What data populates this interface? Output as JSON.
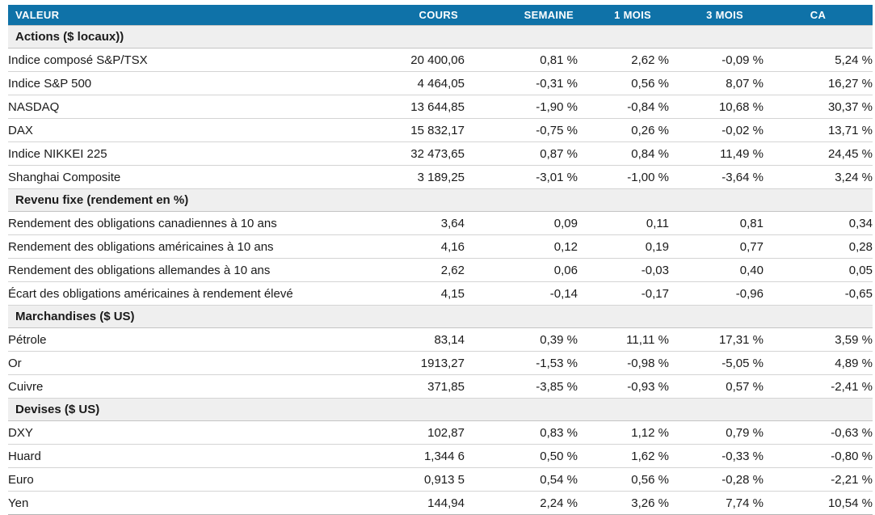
{
  "colors": {
    "header_bg": "#0F72A8",
    "positive": "#00A15D",
    "negative": "#E5150F",
    "section_bg": "#EFEFEF"
  },
  "table": {
    "columns": [
      "VALEUR",
      "COURS",
      "SEMAINE",
      "1 MOIS",
      "3 MOIS",
      "CA"
    ],
    "sections": [
      {
        "title": "Actions ($ locaux))",
        "rows": [
          {
            "label": "Indice composé S&P/TSX",
            "cours": "20 400,06",
            "changes": [
              {
                "text": "0,81 %",
                "tone": "green"
              },
              {
                "text": "2,62 %",
                "tone": "green"
              },
              {
                "text": "-0,09 %",
                "tone": "red"
              },
              {
                "text": "5,24 %",
                "tone": "green"
              }
            ]
          },
          {
            "label": "Indice S&P 500",
            "cours": "4 464,05",
            "changes": [
              {
                "text": "-0,31 %",
                "tone": "red"
              },
              {
                "text": "0,56 %",
                "tone": "green"
              },
              {
                "text": "8,07 %",
                "tone": "green"
              },
              {
                "text": "16,27 %",
                "tone": "green"
              }
            ]
          },
          {
            "label": "NASDAQ",
            "cours": "13 644,85",
            "changes": [
              {
                "text": "-1,90 %",
                "tone": "red"
              },
              {
                "text": "-0,84 %",
                "tone": "red"
              },
              {
                "text": "10,68 %",
                "tone": "green"
              },
              {
                "text": "30,37 %",
                "tone": "green"
              }
            ]
          },
          {
            "label": "DAX",
            "cours": "15 832,17",
            "changes": [
              {
                "text": "-0,75 %",
                "tone": "red"
              },
              {
                "text": "0,26 %",
                "tone": "green"
              },
              {
                "text": "-0,02 %",
                "tone": "red"
              },
              {
                "text": "13,71 %",
                "tone": "green"
              }
            ]
          },
          {
            "label": "Indice NIKKEI 225",
            "cours": "32 473,65",
            "changes": [
              {
                "text": "0,87 %",
                "tone": "green"
              },
              {
                "text": "0,84 %",
                "tone": "green"
              },
              {
                "text": "11,49 %",
                "tone": "green"
              },
              {
                "text": "24,45 %",
                "tone": "green"
              }
            ]
          },
          {
            "label": "Shanghai Composite",
            "cours": "3 189,25",
            "changes": [
              {
                "text": "-3,01 %",
                "tone": "red"
              },
              {
                "text": "-1,00 %",
                "tone": "red"
              },
              {
                "text": "-3,64 %",
                "tone": "red"
              },
              {
                "text": "3,24 %",
                "tone": "green"
              }
            ]
          }
        ]
      },
      {
        "title": "Revenu fixe (rendement en %)",
        "rows": [
          {
            "label": "Rendement des obligations canadiennes à 10 ans",
            "cours": "3,64",
            "changes": [
              {
                "text": "0,09",
                "tone": "red"
              },
              {
                "text": "0,11",
                "tone": "red"
              },
              {
                "text": "0,81",
                "tone": "red"
              },
              {
                "text": "0,34",
                "tone": "red"
              }
            ]
          },
          {
            "label": "Rendement des obligations américaines à 10 ans",
            "cours": "4,16",
            "changes": [
              {
                "text": "0,12",
                "tone": "red"
              },
              {
                "text": "0,19",
                "tone": "red"
              },
              {
                "text": "0,77",
                "tone": "red"
              },
              {
                "text": "0,28",
                "tone": "red"
              }
            ]
          },
          {
            "label": "Rendement des obligations allemandes à 10 ans",
            "cours": "2,62",
            "changes": [
              {
                "text": "0,06",
                "tone": "red"
              },
              {
                "text": "-0,03",
                "tone": "green"
              },
              {
                "text": "0,40",
                "tone": "red"
              },
              {
                "text": "0,05",
                "tone": "red"
              }
            ]
          },
          {
            "label": "Écart des obligations américaines à rendement élevé",
            "cours": "4,15",
            "changes": [
              {
                "text": "-0,14",
                "tone": "green"
              },
              {
                "text": "-0,17",
                "tone": "green"
              },
              {
                "text": "-0,96",
                "tone": "green"
              },
              {
                "text": "-0,65",
                "tone": "green"
              }
            ]
          }
        ]
      },
      {
        "title": "Marchandises ($ US)",
        "rows": [
          {
            "label": "Pétrole",
            "cours": "83,14",
            "changes": [
              {
                "text": "0,39 %",
                "tone": "green"
              },
              {
                "text": "11,11 %",
                "tone": "green"
              },
              {
                "text": "17,31 %",
                "tone": "green"
              },
              {
                "text": "3,59 %",
                "tone": "green"
              }
            ]
          },
          {
            "label": "Or",
            "cours": "1913,27",
            "changes": [
              {
                "text": "-1,53 %",
                "tone": "red"
              },
              {
                "text": "-0,98 %",
                "tone": "red"
              },
              {
                "text": "-5,05 %",
                "tone": "red"
              },
              {
                "text": "4,89 %",
                "tone": "green"
              }
            ]
          },
          {
            "label": "Cuivre",
            "cours": "371,85",
            "changes": [
              {
                "text": "-3,85 %",
                "tone": "red"
              },
              {
                "text": "-0,93 %",
                "tone": "red"
              },
              {
                "text": "0,57 %",
                "tone": "green"
              },
              {
                "text": "-2,41 %",
                "tone": "red"
              }
            ]
          }
        ]
      },
      {
        "title": "Devises ($ US)",
        "rows": [
          {
            "label": "DXY",
            "cours": "102,87",
            "changes": [
              {
                "text": "0,83 %",
                "tone": "green"
              },
              {
                "text": "1,12 %",
                "tone": "green"
              },
              {
                "text": "0,79 %",
                "tone": "green"
              },
              {
                "text": "-0,63 %",
                "tone": "red"
              }
            ]
          },
          {
            "label": "Huard",
            "cours": "1,344 6",
            "changes": [
              {
                "text": "0,50 %",
                "tone": "green"
              },
              {
                "text": "1,62 %",
                "tone": "green"
              },
              {
                "text": "-0,33 %",
                "tone": "red"
              },
              {
                "text": "-0,80 %",
                "tone": "red"
              }
            ]
          },
          {
            "label": "Euro",
            "cours": "0,913 5",
            "changes": [
              {
                "text": "0,54 %",
                "tone": "green"
              },
              {
                "text": "0,56 %",
                "tone": "green"
              },
              {
                "text": "-0,28 %",
                "tone": "red"
              },
              {
                "text": "-2,21 %",
                "tone": "red"
              }
            ]
          },
          {
            "label": "Yen",
            "cours": "144,94",
            "changes": [
              {
                "text": "2,24 %",
                "tone": "green"
              },
              {
                "text": "3,26 %",
                "tone": "green"
              },
              {
                "text": "7,74 %",
                "tone": "green"
              },
              {
                "text": "10,54 %",
                "tone": "green"
              }
            ]
          }
        ]
      }
    ]
  },
  "chart_data": {
    "type": "table",
    "columns": [
      "VALEUR",
      "COURS",
      "SEMAINE",
      "1 MOIS",
      "3 MOIS",
      "CA"
    ],
    "sections": [
      {
        "title": "Actions ($ locaux))",
        "rows": [
          [
            "Indice composé S&P/TSX",
            "20 400,06",
            "0,81 %",
            "2,62 %",
            "-0,09 %",
            "5,24 %"
          ],
          [
            "Indice S&P 500",
            "4 464,05",
            "-0,31 %",
            "0,56 %",
            "8,07 %",
            "16,27 %"
          ],
          [
            "NASDAQ",
            "13 644,85",
            "-1,90 %",
            "-0,84 %",
            "10,68 %",
            "30,37 %"
          ],
          [
            "DAX",
            "15 832,17",
            "-0,75 %",
            "0,26 %",
            "-0,02 %",
            "13,71 %"
          ],
          [
            "Indice NIKKEI 225",
            "32 473,65",
            "0,87 %",
            "0,84 %",
            "11,49 %",
            "24,45 %"
          ],
          [
            "Shanghai Composite",
            "3 189,25",
            "-3,01 %",
            "-1,00 %",
            "-3,64 %",
            "3,24 %"
          ]
        ]
      },
      {
        "title": "Revenu fixe (rendement en %)",
        "rows": [
          [
            "Rendement des obligations canadiennes à 10 ans",
            "3,64",
            "0,09",
            "0,11",
            "0,81",
            "0,34"
          ],
          [
            "Rendement des obligations américaines à 10 ans",
            "4,16",
            "0,12",
            "0,19",
            "0,77",
            "0,28"
          ],
          [
            "Rendement des obligations allemandes à 10 ans",
            "2,62",
            "0,06",
            "-0,03",
            "0,40",
            "0,05"
          ],
          [
            "Écart des obligations américaines à rendement élevé",
            "4,15",
            "-0,14",
            "-0,17",
            "-0,96",
            "-0,65"
          ]
        ]
      },
      {
        "title": "Marchandises ($ US)",
        "rows": [
          [
            "Pétrole",
            "83,14",
            "0,39 %",
            "11,11 %",
            "17,31 %",
            "3,59 %"
          ],
          [
            "Or",
            "1913,27",
            "-1,53 %",
            "-0,98 %",
            "-5,05 %",
            "4,89 %"
          ],
          [
            "Cuivre",
            "371,85",
            "-3,85 %",
            "-0,93 %",
            "0,57 %",
            "-2,41 %"
          ]
        ]
      },
      {
        "title": "Devises ($ US)",
        "rows": [
          [
            "DXY",
            "102,87",
            "0,83 %",
            "1,12 %",
            "0,79 %",
            "-0,63 %"
          ],
          [
            "Huard",
            "1,344 6",
            "0,50 %",
            "1,62 %",
            "-0,33 %",
            "-0,80 %"
          ],
          [
            "Euro",
            "0,913 5",
            "0,54 %",
            "0,56 %",
            "-0,28 %",
            "-2,21 %"
          ],
          [
            "Yen",
            "144,94",
            "2,24 %",
            "3,26 %",
            "7,74 %",
            "10,54 %"
          ]
        ]
      }
    ]
  }
}
